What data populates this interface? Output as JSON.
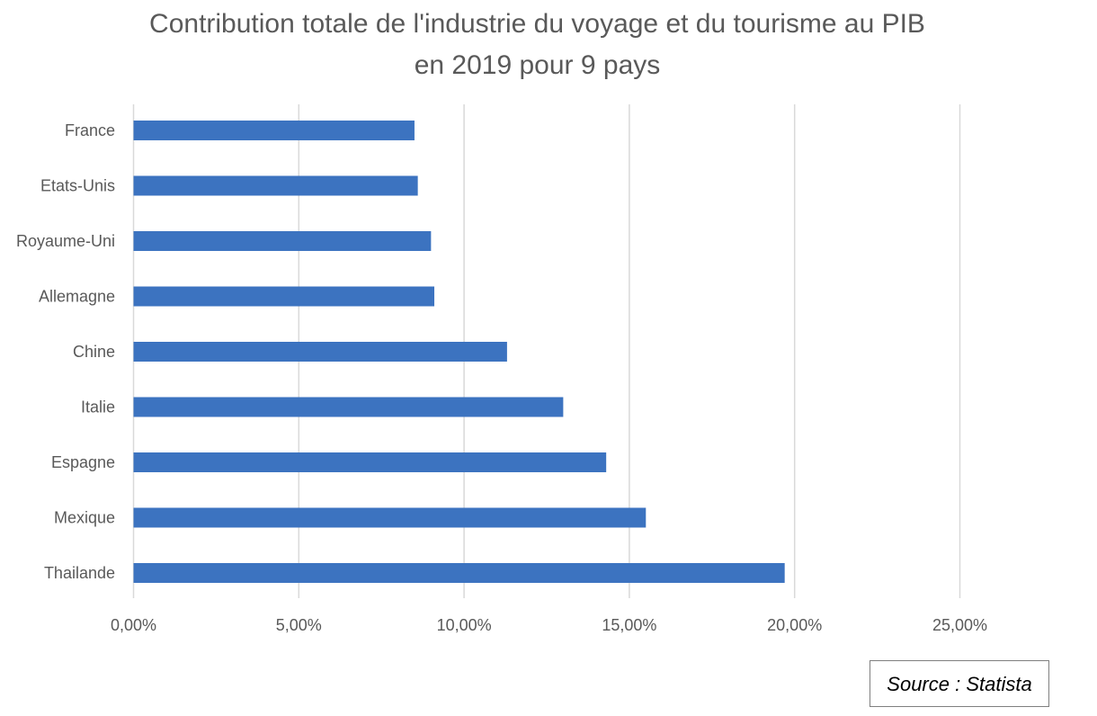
{
  "chart_data": {
    "type": "bar",
    "orientation": "horizontal",
    "title": "Contribution totale de l'industrie du voyage et du tourisme au PIB",
    "subtitle": "en 2019 pour 9 pays",
    "categories": [
      "France",
      "Etats-Unis",
      "Royaume-Uni",
      "Allemagne",
      "Chine",
      "Italie",
      "Espagne",
      "Mexique",
      "Thailande"
    ],
    "values": [
      8.5,
      8.6,
      9.0,
      9.1,
      11.3,
      13.0,
      14.3,
      15.5,
      19.7
    ],
    "xlim": [
      0,
      25
    ],
    "xticks": [
      0,
      5,
      10,
      15,
      20,
      25
    ],
    "xtick_labels": [
      "0,00%",
      "5,00%",
      "10,00%",
      "15,00%",
      "20,00%",
      "25,00%"
    ],
    "grid": true,
    "legend": "none",
    "bar_color": "#3c73c0",
    "grid_color": "#d9d9d9"
  },
  "source": "Source : Statista"
}
